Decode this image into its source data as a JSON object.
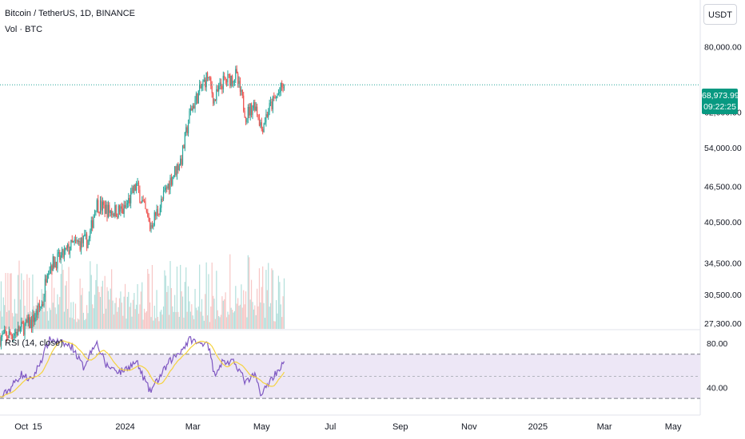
{
  "header": {
    "title": "Bitcoin / TetherUS, 1D, BINANCE",
    "volume_label": "Vol · BTC"
  },
  "currency_button": "USDT",
  "last_price": {
    "value": "68,973.99",
    "countdown": "09:22:25",
    "color": "#089981"
  },
  "colors": {
    "up": "#26a69a",
    "down": "#ef5350",
    "vol_up": "#b2dfdb",
    "vol_down": "#f7c6c5",
    "rsi_line": "#7e57c2",
    "rsi_ma": "#f5d33f",
    "rsi_band": "#ede7f6"
  },
  "rsi": {
    "label": "RSI (14, close)",
    "upper": 70,
    "lower": 30,
    "middle": 50,
    "axis_ticks": [
      "80.00",
      "40.00"
    ]
  },
  "chart_data": {
    "type": "candlestick",
    "title": "Bitcoin / TetherUS, 1D, BINANCE",
    "y_scale": "log",
    "y_ticks": [
      "80,000.00",
      "62,000.00",
      "54,000.00",
      "46,500.00",
      "40,500.00",
      "34,500.00",
      "30,500.00",
      "27,300.00"
    ],
    "y_tick_values": [
      80000,
      62000,
      54000,
      46500,
      40500,
      34500,
      30500,
      27300
    ],
    "ylim": [
      26700,
      93000
    ],
    "x_ticks": [
      "Oct",
      "15",
      "2024",
      "Mar",
      "May",
      "Jul",
      "Sep",
      "Nov",
      "2025",
      "Mar",
      "May"
    ],
    "x_tick_dates": [
      "2023-10-01",
      "2023-10-15",
      "2024-01-01",
      "2024-03-01",
      "2024-05-01",
      "2024-07-01",
      "2024-09-01",
      "2024-11-01",
      "2025-01-01",
      "2025-03-01",
      "2025-05-01"
    ],
    "xlim": [
      "2023-09-12",
      "2025-05-25"
    ],
    "last_date": "2024-05-21",
    "last_close": 68973.99,
    "keypoints": [
      [
        "2023-09-12",
        25800
      ],
      [
        "2023-09-25",
        26300
      ],
      [
        "2023-10-10",
        27400
      ],
      [
        "2023-10-20",
        29600
      ],
      [
        "2023-10-24",
        34000
      ],
      [
        "2023-11-05",
        35200
      ],
      [
        "2023-11-15",
        37000
      ],
      [
        "2023-11-30",
        37700
      ],
      [
        "2023-12-06",
        43500
      ],
      [
        "2023-12-18",
        42200
      ],
      [
        "2023-12-31",
        42300
      ],
      [
        "2024-01-11",
        46600
      ],
      [
        "2024-01-23",
        39700
      ],
      [
        "2024-02-01",
        43100
      ],
      [
        "2024-02-09",
        47200
      ],
      [
        "2024-02-20",
        51800
      ],
      [
        "2024-02-28",
        62300
      ],
      [
        "2024-03-05",
        66000
      ],
      [
        "2024-03-14",
        71500
      ],
      [
        "2024-03-20",
        64800
      ],
      [
        "2024-03-27",
        69500
      ],
      [
        "2024-04-08",
        71600
      ],
      [
        "2024-04-17",
        61300
      ],
      [
        "2024-04-25",
        64200
      ],
      [
        "2024-05-01",
        58300
      ],
      [
        "2024-05-07",
        62500
      ],
      [
        "2024-05-15",
        66200
      ],
      [
        "2024-05-21",
        68973.99
      ]
    ],
    "rsi_keypoints": [
      [
        "2023-09-12",
        30
      ],
      [
        "2023-09-20",
        38
      ],
      [
        "2023-10-01",
        52
      ],
      [
        "2023-10-10",
        46
      ],
      [
        "2023-10-20",
        68
      ],
      [
        "2023-10-26",
        84
      ],
      [
        "2023-11-05",
        80
      ],
      [
        "2023-11-15",
        77
      ],
      [
        "2023-11-25",
        58
      ],
      [
        "2023-12-06",
        82
      ],
      [
        "2023-12-15",
        60
      ],
      [
        "2023-12-28",
        54
      ],
      [
        "2024-01-11",
        63
      ],
      [
        "2024-01-23",
        36
      ],
      [
        "2024-02-01",
        50
      ],
      [
        "2024-02-10",
        64
      ],
      [
        "2024-02-20",
        74
      ],
      [
        "2024-02-28",
        84
      ],
      [
        "2024-03-06",
        79
      ],
      [
        "2024-03-14",
        82
      ],
      [
        "2024-03-20",
        52
      ],
      [
        "2024-03-27",
        63
      ],
      [
        "2024-04-08",
        62
      ],
      [
        "2024-04-17",
        44
      ],
      [
        "2024-04-25",
        51
      ],
      [
        "2024-05-01",
        33
      ],
      [
        "2024-05-07",
        44
      ],
      [
        "2024-05-15",
        55
      ],
      [
        "2024-05-21",
        62
      ]
    ],
    "rsi_ylim": [
      20,
      85
    ]
  }
}
